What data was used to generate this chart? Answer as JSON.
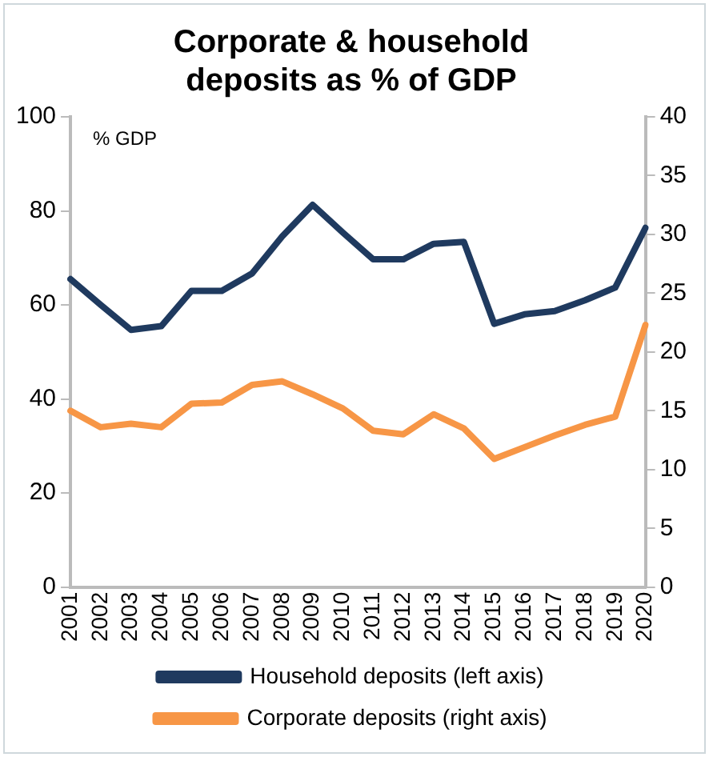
{
  "chart_data": {
    "type": "line",
    "title": "Corporate & household deposits as % of GDP",
    "categories": [
      "2001",
      "2002",
      "2003",
      "2004",
      "2005",
      "2006",
      "2007",
      "2008",
      "2009",
      "2010",
      "2011",
      "2012",
      "2013",
      "2014",
      "2015",
      "2016",
      "2017",
      "2018",
      "2019",
      "2020"
    ],
    "series": [
      {
        "name": "Household deposits (left axis)",
        "color": "#1f3a5f",
        "values": [
          65.5,
          60,
          54.7,
          55.5,
          63,
          63,
          66.7,
          74.6,
          81.3,
          75.4,
          69.7,
          69.7,
          73,
          73.4,
          56,
          58,
          58.7,
          61,
          63.7,
          76.4
        ]
      },
      {
        "name": "Corporate deposits (right axis)",
        "color": "#f79646",
        "axis": "y2",
        "values": [
          15.0,
          13.6,
          13.9,
          13.6,
          15.6,
          15.7,
          17.2,
          17.5,
          16.4,
          15.2,
          13.3,
          13.0,
          14.7,
          13.5,
          10.9,
          11.9,
          12.9,
          13.8,
          14.5,
          22.3
        ]
      }
    ],
    "ylim": [
      0,
      100
    ],
    "yticks": [
      0,
      20,
      40,
      60,
      80,
      100
    ],
    "y2lim": [
      0,
      40
    ],
    "y2ticks": [
      0,
      5,
      10,
      15,
      20,
      25,
      30,
      35,
      40
    ],
    "annotations": [
      "% GDP"
    ],
    "legend": "bottom",
    "grid": false,
    "marker": "none",
    "line_style": "solid"
  }
}
